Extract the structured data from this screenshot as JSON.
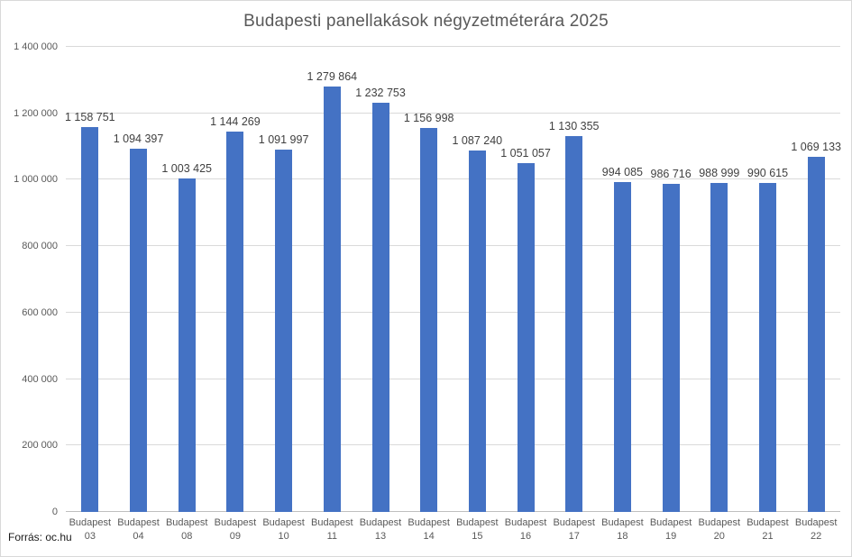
{
  "title": "Budapesti panellakások négyzetméterára 2025",
  "source": "Forrás: oc.hu",
  "colors": {
    "bar": "#4472c4",
    "gridline": "#d9d9d9",
    "axis_line": "#bfbfbf",
    "title_text": "#595959",
    "data_label_text": "#404040",
    "tick_text": "#595959",
    "frame_border": "#d9d9d9",
    "background": "#ffffff"
  },
  "chart_data": {
    "type": "bar",
    "title": "Budapesti panellakások négyzetméterára 2025",
    "xlabel": "",
    "ylabel": "",
    "categories": [
      "Budapest 03",
      "Budapest 04",
      "Budapest 08",
      "Budapest 09",
      "Budapest 10",
      "Budapest 11",
      "Budapest 13",
      "Budapest 14",
      "Budapest 15",
      "Budapest 16",
      "Budapest 17",
      "Budapest 18",
      "Budapest 19",
      "Budapest 20",
      "Budapest 21",
      "Budapest 22"
    ],
    "category_line1": "Budapest",
    "category_line2": [
      "03",
      "04",
      "08",
      "09",
      "10",
      "11",
      "13",
      "14",
      "15",
      "16",
      "17",
      "18",
      "19",
      "20",
      "21",
      "22"
    ],
    "values": [
      1158751,
      1094397,
      1003425,
      1144269,
      1091997,
      1279864,
      1232753,
      1156998,
      1087240,
      1051057,
      1130355,
      994085,
      986716,
      988999,
      990615,
      1069133
    ],
    "value_labels": [
      "1 158 751",
      "1 094 397",
      "1 003 425",
      "1 144 269",
      "1 091 997",
      "1 279 864",
      "1 232 753",
      "1 156 998",
      "1 087 240",
      "1 051 057",
      "1 130 355",
      "994 085",
      "986 716",
      "988 999",
      "990 615",
      "1 069 133"
    ],
    "ylim": [
      0,
      1400000
    ],
    "ytick_values": [
      0,
      200000,
      400000,
      600000,
      800000,
      1000000,
      1200000,
      1400000
    ],
    "ytick_labels": [
      "0",
      "200 000",
      "400 000",
      "600 000",
      "800 000",
      "1 000 000",
      "1 200 000",
      "1 400 000"
    ],
    "grid": true,
    "legend": false,
    "source": "Forrás: oc.hu"
  }
}
